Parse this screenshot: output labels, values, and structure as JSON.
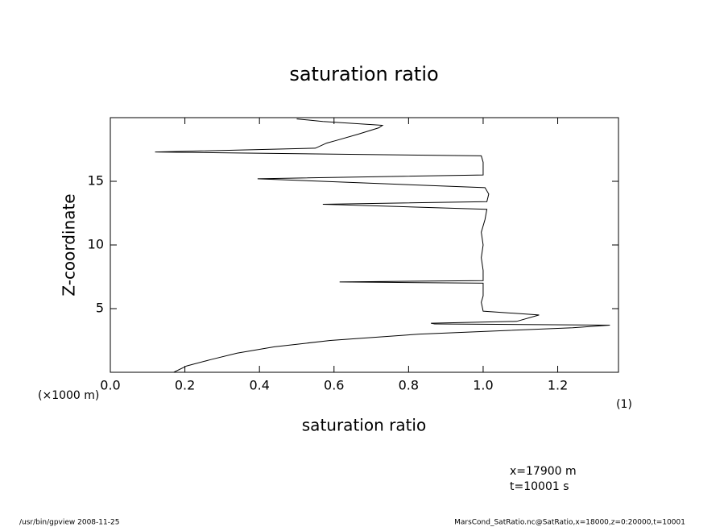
{
  "chart_data": {
    "type": "line",
    "title": "saturation ratio",
    "x_label": "saturation ratio",
    "y_label": "Z-coordinate",
    "y_unit": "(×1000 m)",
    "x_unit": "(1)",
    "notes": [
      "x=17900 m",
      "t=10001 s"
    ],
    "footer_left": "/usr/bin/gpview  2008-11-25",
    "footer_right": "MarsCond_SatRatio.nc@SatRatio,x=18000,z=0:20000,t=10001",
    "color": "#000000",
    "x": [
      0.17,
      0.205,
      0.27,
      0.34,
      0.44,
      0.59,
      0.83,
      1.24,
      1.34,
      0.87,
      0.86,
      1.09,
      1.15,
      1.0,
      0.995,
      1.0,
      1.0,
      0.615,
      1.0,
      1.0,
      0.995,
      1.0,
      0.995,
      1.005,
      1.01,
      0.57,
      1.01,
      1.015,
      1.005,
      0.395,
      1.0,
      1.0,
      0.995,
      0.12,
      0.55,
      0.58,
      0.605,
      0.665,
      0.72,
      0.73,
      0.57,
      0.5
    ],
    "values": [
      0,
      0.5,
      1,
      1.5,
      2,
      2.5,
      3,
      3.5,
      3.7,
      3.8,
      3.85,
      4.0,
      4.5,
      4.8,
      5.5,
      6,
      7,
      7.1,
      7.2,
      8,
      9,
      10,
      11,
      12,
      12.8,
      13.2,
      13.4,
      14,
      14.5,
      15.2,
      15.5,
      16.5,
      17,
      17.3,
      17.6,
      18,
      18.2,
      18.7,
      19.2,
      19.4,
      19.7,
      19.9
    ],
    "xlim": [
      0,
      1.363
    ],
    "ylim": [
      0,
      20
    ],
    "xticks": [
      {
        "value": 0,
        "label": "0.0"
      },
      {
        "value": 0.2,
        "label": "0.2"
      },
      {
        "value": 0.4,
        "label": "0.4"
      },
      {
        "value": 0.6,
        "label": "0.6"
      },
      {
        "value": 0.8,
        "label": "0.8"
      },
      {
        "value": 1.0,
        "label": "1.0"
      },
      {
        "value": 1.2,
        "label": "1.2"
      }
    ],
    "yticks": [
      5,
      10,
      15
    ]
  }
}
